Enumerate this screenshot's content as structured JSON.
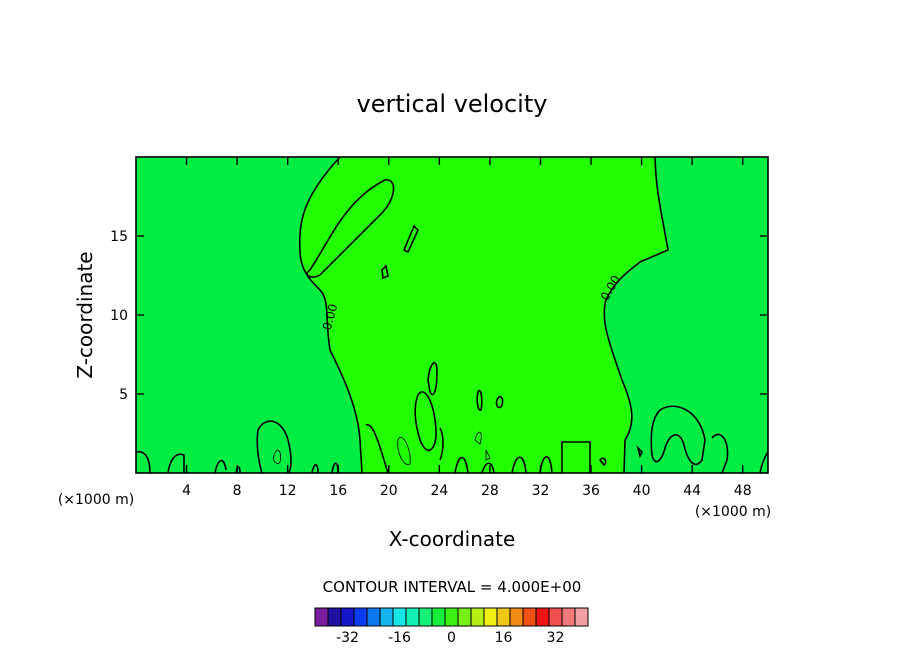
{
  "chart_data": {
    "type": "contour",
    "title": "vertical velocity",
    "xlabel": "X-coordinate",
    "ylabel": "Z-coordinate",
    "x_unit": "(×1000 m)",
    "xlim": [
      0,
      50
    ],
    "ylim": [
      0,
      20
    ],
    "x_ticks": [
      "4",
      "8",
      "12",
      "16",
      "20",
      "24",
      "28",
      "32",
      "36",
      "40",
      "44",
      "48"
    ],
    "y_ticks": [
      "5",
      "10",
      "15"
    ],
    "contour_labels": [
      "0.00",
      "0.00"
    ],
    "contour_interval": "CONTOUR INTERVAL = 4.000E+00",
    "colorbar": {
      "tick_labels": [
        "-32",
        "-16",
        "0",
        "16",
        "32"
      ],
      "colors": [
        "#7a1ea0",
        "#1e10a0",
        "#1414c8",
        "#0a3cf0",
        "#0a78f0",
        "#14b4f0",
        "#14e6e6",
        "#14f0b4",
        "#14f078",
        "#14f03c",
        "#3cf014",
        "#78f014",
        "#b4f014",
        "#f0f014",
        "#f0c814",
        "#f08c14",
        "#f05014",
        "#f01414",
        "#f05050",
        "#f07878",
        "#f0a0a0"
      ]
    },
    "fill_colors": {
      "background": "#00ee44",
      "updraft": "#22ff00"
    }
  }
}
